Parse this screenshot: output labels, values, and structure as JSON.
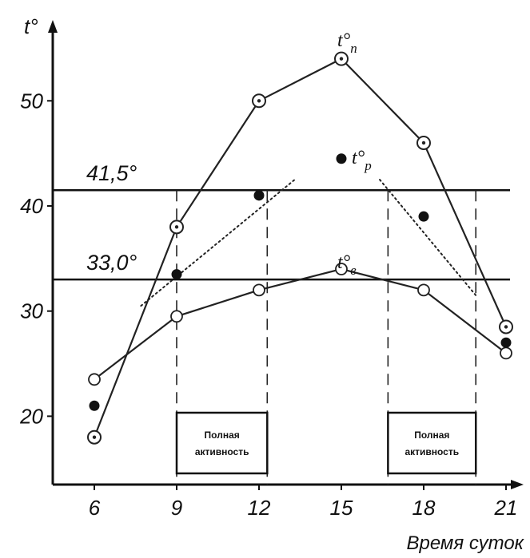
{
  "chart_data": {
    "type": "line",
    "xlabel": "Время суток",
    "ylabel": "t°",
    "x": [
      6,
      9,
      12,
      15,
      18,
      21
    ],
    "xlim": [
      6,
      21
    ],
    "ylim": [
      13.5,
      56
    ],
    "yticks": [
      20,
      30,
      40,
      50
    ],
    "series": [
      {
        "name": "t°п",
        "values": [
          18,
          38,
          50,
          54,
          46,
          28.5
        ],
        "marker": "dotted-circle",
        "style": "solid"
      },
      {
        "name": "t°в",
        "values": [
          23.5,
          29.5,
          32,
          34,
          32,
          26
        ],
        "marker": "open-circle",
        "style": "solid"
      },
      {
        "name": "t°р",
        "values": [
          21,
          33.5,
          41,
          44.5,
          39,
          27
        ],
        "marker": "filled-circle",
        "style": "none"
      }
    ],
    "trend_lines": [
      {
        "from": [
          7.7,
          30.5
        ],
        "to": [
          13.3,
          42.5
        ]
      },
      {
        "from": [
          16.4,
          42.5
        ],
        "to": [
          19.9,
          31.5
        ]
      }
    ],
    "thresholds": [
      {
        "value": 41.5,
        "label": "41,5°"
      },
      {
        "value": 33.0,
        "label": "33,0°"
      }
    ],
    "dashed_verticals": [
      9,
      12.3,
      16.7,
      19.9
    ],
    "annotations": [
      {
        "text": "Полная активность",
        "from": 9,
        "to": 12.3
      },
      {
        "text": "Полная активность",
        "from": 16.7,
        "to": 19.9
      }
    ]
  }
}
